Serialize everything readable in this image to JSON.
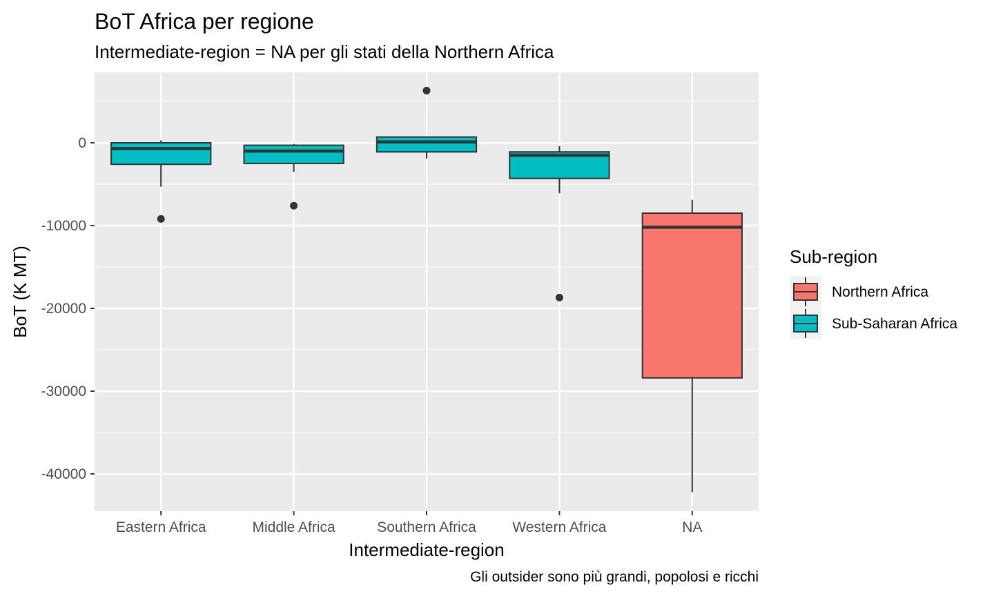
{
  "chart_data": {
    "type": "box",
    "title": "BoT Africa per regione",
    "subtitle": "Intermediate-region =  NA per gli stati della Northern Africa",
    "caption": "Gli outsider sono più grandi, popolosi e ricchi",
    "xlabel": "Intermediate-region",
    "ylabel": "BoT (K MT)",
    "ylim": [
      -44500,
      8500
    ],
    "yticks": [
      0,
      -10000,
      -20000,
      -30000,
      -40000
    ],
    "ytick_labels": [
      "0",
      "-10000",
      "-20000",
      "-30000",
      "-40000"
    ],
    "categories": [
      "Eastern Africa",
      "Middle Africa",
      "Southern Africa",
      "Western Africa",
      "NA"
    ],
    "grid": true,
    "legend": {
      "title": "Sub-region",
      "position": "right",
      "entries": [
        {
          "name": "Northern Africa",
          "color": "#F8766D"
        },
        {
          "name": "Sub-Saharan Africa",
          "color": "#00BFC4"
        }
      ]
    },
    "boxes": [
      {
        "category": "Eastern Africa",
        "group": "Sub-Saharan Africa",
        "whisker_low": -5300,
        "q1": -2600,
        "median": -700,
        "q3": 0,
        "whisker_high": 300,
        "outliers": [
          -9200
        ]
      },
      {
        "category": "Middle Africa",
        "group": "Sub-Saharan Africa",
        "whisker_low": -3500,
        "q1": -2500,
        "median": -1000,
        "q3": -300,
        "whisker_high": -150,
        "outliers": [
          -7600
        ]
      },
      {
        "category": "Southern Africa",
        "group": "Sub-Saharan Africa",
        "whisker_low": -1900,
        "q1": -1100,
        "median": 100,
        "q3": 700,
        "whisker_high": 700,
        "outliers": [
          6300
        ]
      },
      {
        "category": "Western Africa",
        "group": "Sub-Saharan Africa",
        "whisker_low": -6100,
        "q1": -4300,
        "median": -1500,
        "q3": -1100,
        "whisker_high": -400,
        "outliers": [
          -18700
        ]
      },
      {
        "category": "NA",
        "group": "Northern Africa",
        "whisker_low": -42200,
        "q1": -28400,
        "median": -10200,
        "q3": -8500,
        "whisker_high": -6900,
        "outliers": []
      }
    ]
  }
}
